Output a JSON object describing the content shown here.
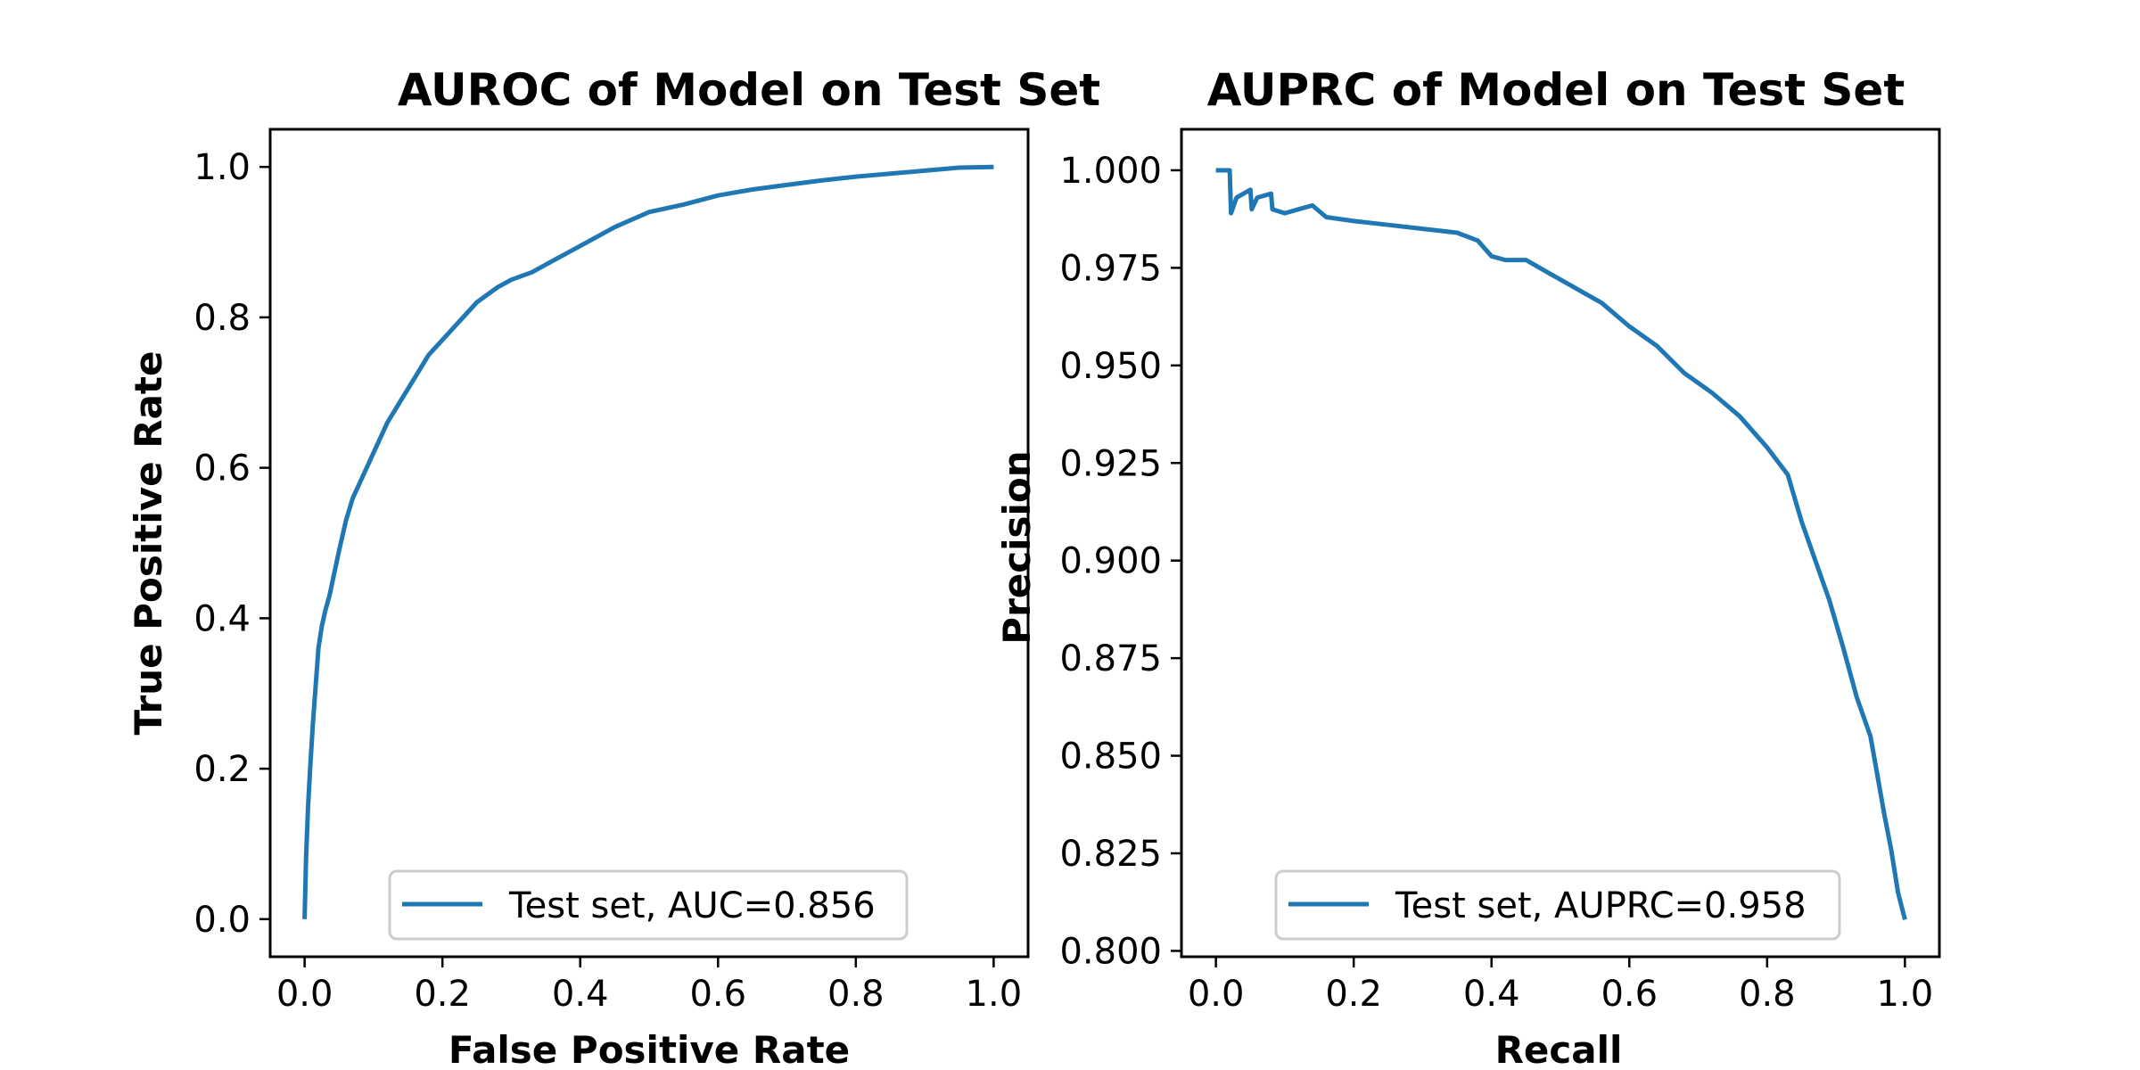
{
  "colors": {
    "series": "#1f77b4",
    "axes": "#000000",
    "legend_border": "#cccccc"
  },
  "chart_data": [
    {
      "type": "line",
      "title": "AUROC of Model on Test Set",
      "xlabel": "False Positive Rate",
      "ylabel": "True Positive Rate",
      "xlim": [
        -0.05,
        1.05
      ],
      "ylim": [
        -0.05,
        1.05
      ],
      "xticks": [
        0.0,
        0.2,
        0.4,
        0.6,
        0.8,
        1.0
      ],
      "xtick_labels": [
        "0.0",
        "0.2",
        "0.4",
        "0.6",
        "0.8",
        "1.0"
      ],
      "yticks": [
        0.0,
        0.2,
        0.4,
        0.6,
        0.8,
        1.0
      ],
      "ytick_labels": [
        "0.0",
        "0.2",
        "0.4",
        "0.6",
        "0.8",
        "1.0"
      ],
      "grid": false,
      "legend_position": "lower-center",
      "series": [
        {
          "name": "Test set, AUC=0.856",
          "color": "#1f77b4",
          "x": [
            0.0,
            0.002,
            0.005,
            0.008,
            0.012,
            0.016,
            0.02,
            0.025,
            0.03,
            0.036,
            0.043,
            0.05,
            0.06,
            0.07,
            0.08,
            0.1,
            0.12,
            0.14,
            0.16,
            0.18,
            0.2,
            0.22,
            0.25,
            0.28,
            0.3,
            0.33,
            0.36,
            0.4,
            0.45,
            0.5,
            0.55,
            0.6,
            0.65,
            0.7,
            0.75,
            0.8,
            0.85,
            0.9,
            0.95,
            1.0
          ],
          "y": [
            0.0,
            0.08,
            0.15,
            0.2,
            0.26,
            0.31,
            0.36,
            0.39,
            0.41,
            0.43,
            0.46,
            0.49,
            0.53,
            0.56,
            0.58,
            0.62,
            0.66,
            0.69,
            0.72,
            0.75,
            0.77,
            0.79,
            0.82,
            0.84,
            0.85,
            0.86,
            0.875,
            0.895,
            0.92,
            0.94,
            0.95,
            0.962,
            0.97,
            0.976,
            0.982,
            0.987,
            0.991,
            0.995,
            0.999,
            1.0
          ]
        }
      ]
    },
    {
      "type": "line",
      "title": "AUPRC of Model on Test Set",
      "xlabel": "Recall",
      "ylabel": "Precision",
      "xlim": [
        -0.05,
        1.05
      ],
      "ylim": [
        0.7985,
        1.0105
      ],
      "xticks": [
        0.0,
        0.2,
        0.4,
        0.6,
        0.8,
        1.0
      ],
      "xtick_labels": [
        "0.0",
        "0.2",
        "0.4",
        "0.6",
        "0.8",
        "1.0"
      ],
      "yticks": [
        0.8,
        0.825,
        0.85,
        0.875,
        0.9,
        0.925,
        0.95,
        0.975,
        1.0
      ],
      "ytick_labels": [
        "0.800",
        "0.825",
        "0.850",
        "0.875",
        "0.900",
        "0.925",
        "0.950",
        "0.975",
        "1.000"
      ],
      "grid": false,
      "legend_position": "lower-center",
      "series": [
        {
          "name": "Test set, AUPRC=0.958",
          "color": "#1f77b4",
          "x": [
            0.0,
            0.02,
            0.022,
            0.03,
            0.05,
            0.052,
            0.06,
            0.08,
            0.082,
            0.1,
            0.12,
            0.14,
            0.16,
            0.2,
            0.25,
            0.3,
            0.35,
            0.38,
            0.4,
            0.42,
            0.45,
            0.48,
            0.52,
            0.56,
            0.6,
            0.64,
            0.68,
            0.72,
            0.76,
            0.8,
            0.83,
            0.85,
            0.87,
            0.89,
            0.91,
            0.93,
            0.95,
            0.96,
            0.97,
            0.98,
            0.99,
            1.0
          ],
          "y": [
            1.0,
            1.0,
            0.989,
            0.993,
            0.995,
            0.99,
            0.993,
            0.994,
            0.99,
            0.989,
            0.99,
            0.991,
            0.988,
            0.987,
            0.986,
            0.985,
            0.984,
            0.982,
            0.978,
            0.977,
            0.977,
            0.974,
            0.97,
            0.966,
            0.96,
            0.955,
            0.948,
            0.943,
            0.937,
            0.929,
            0.922,
            0.91,
            0.9,
            0.89,
            0.878,
            0.865,
            0.855,
            0.845,
            0.835,
            0.826,
            0.815,
            0.808
          ]
        }
      ]
    }
  ]
}
